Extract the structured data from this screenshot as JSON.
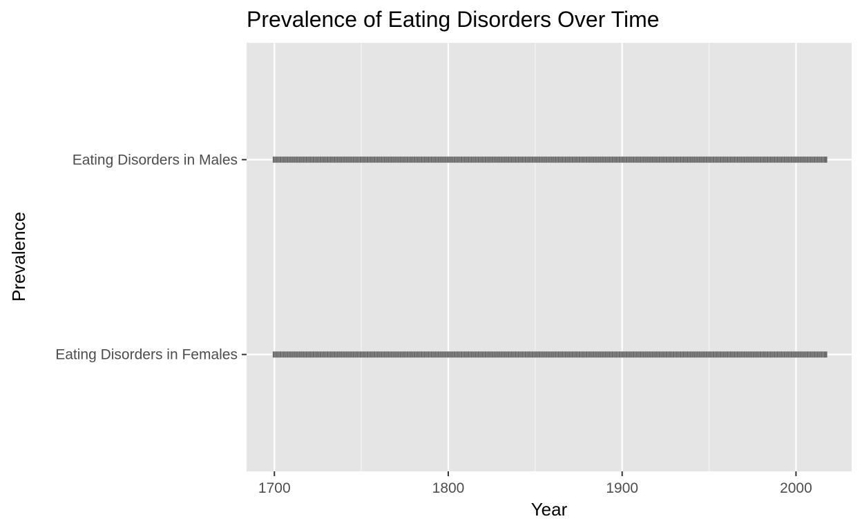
{
  "chart_data": {
    "type": "scatter",
    "title": "Prevalence of Eating Disorders Over Time",
    "xlabel": "Year",
    "ylabel": "Prevalence",
    "xlim": [
      1684,
      2032
    ],
    "x_ticks": [
      "1700",
      "1800",
      "1900",
      "2000"
    ],
    "x_tick_values": [
      1700,
      1800,
      1900,
      2000
    ],
    "categories": [
      "Eating Disorders in Males",
      "Eating Disorders in Females"
    ],
    "x_range": [
      1700,
      2017
    ],
    "grid": true,
    "legend": "none",
    "series": [
      {
        "category": "Eating Disorders in Males",
        "x_start": 1700,
        "x_end": 2017,
        "marker": "square"
      },
      {
        "category": "Eating Disorders in Females",
        "x_start": 1700,
        "x_end": 2017,
        "marker": "square"
      }
    ],
    "colors": {
      "panel": "#e5e5e5",
      "grid": "#ffffff",
      "points": "#6b6b6b",
      "tick_text": "#4d4d4d",
      "title_text": "#000000"
    }
  }
}
